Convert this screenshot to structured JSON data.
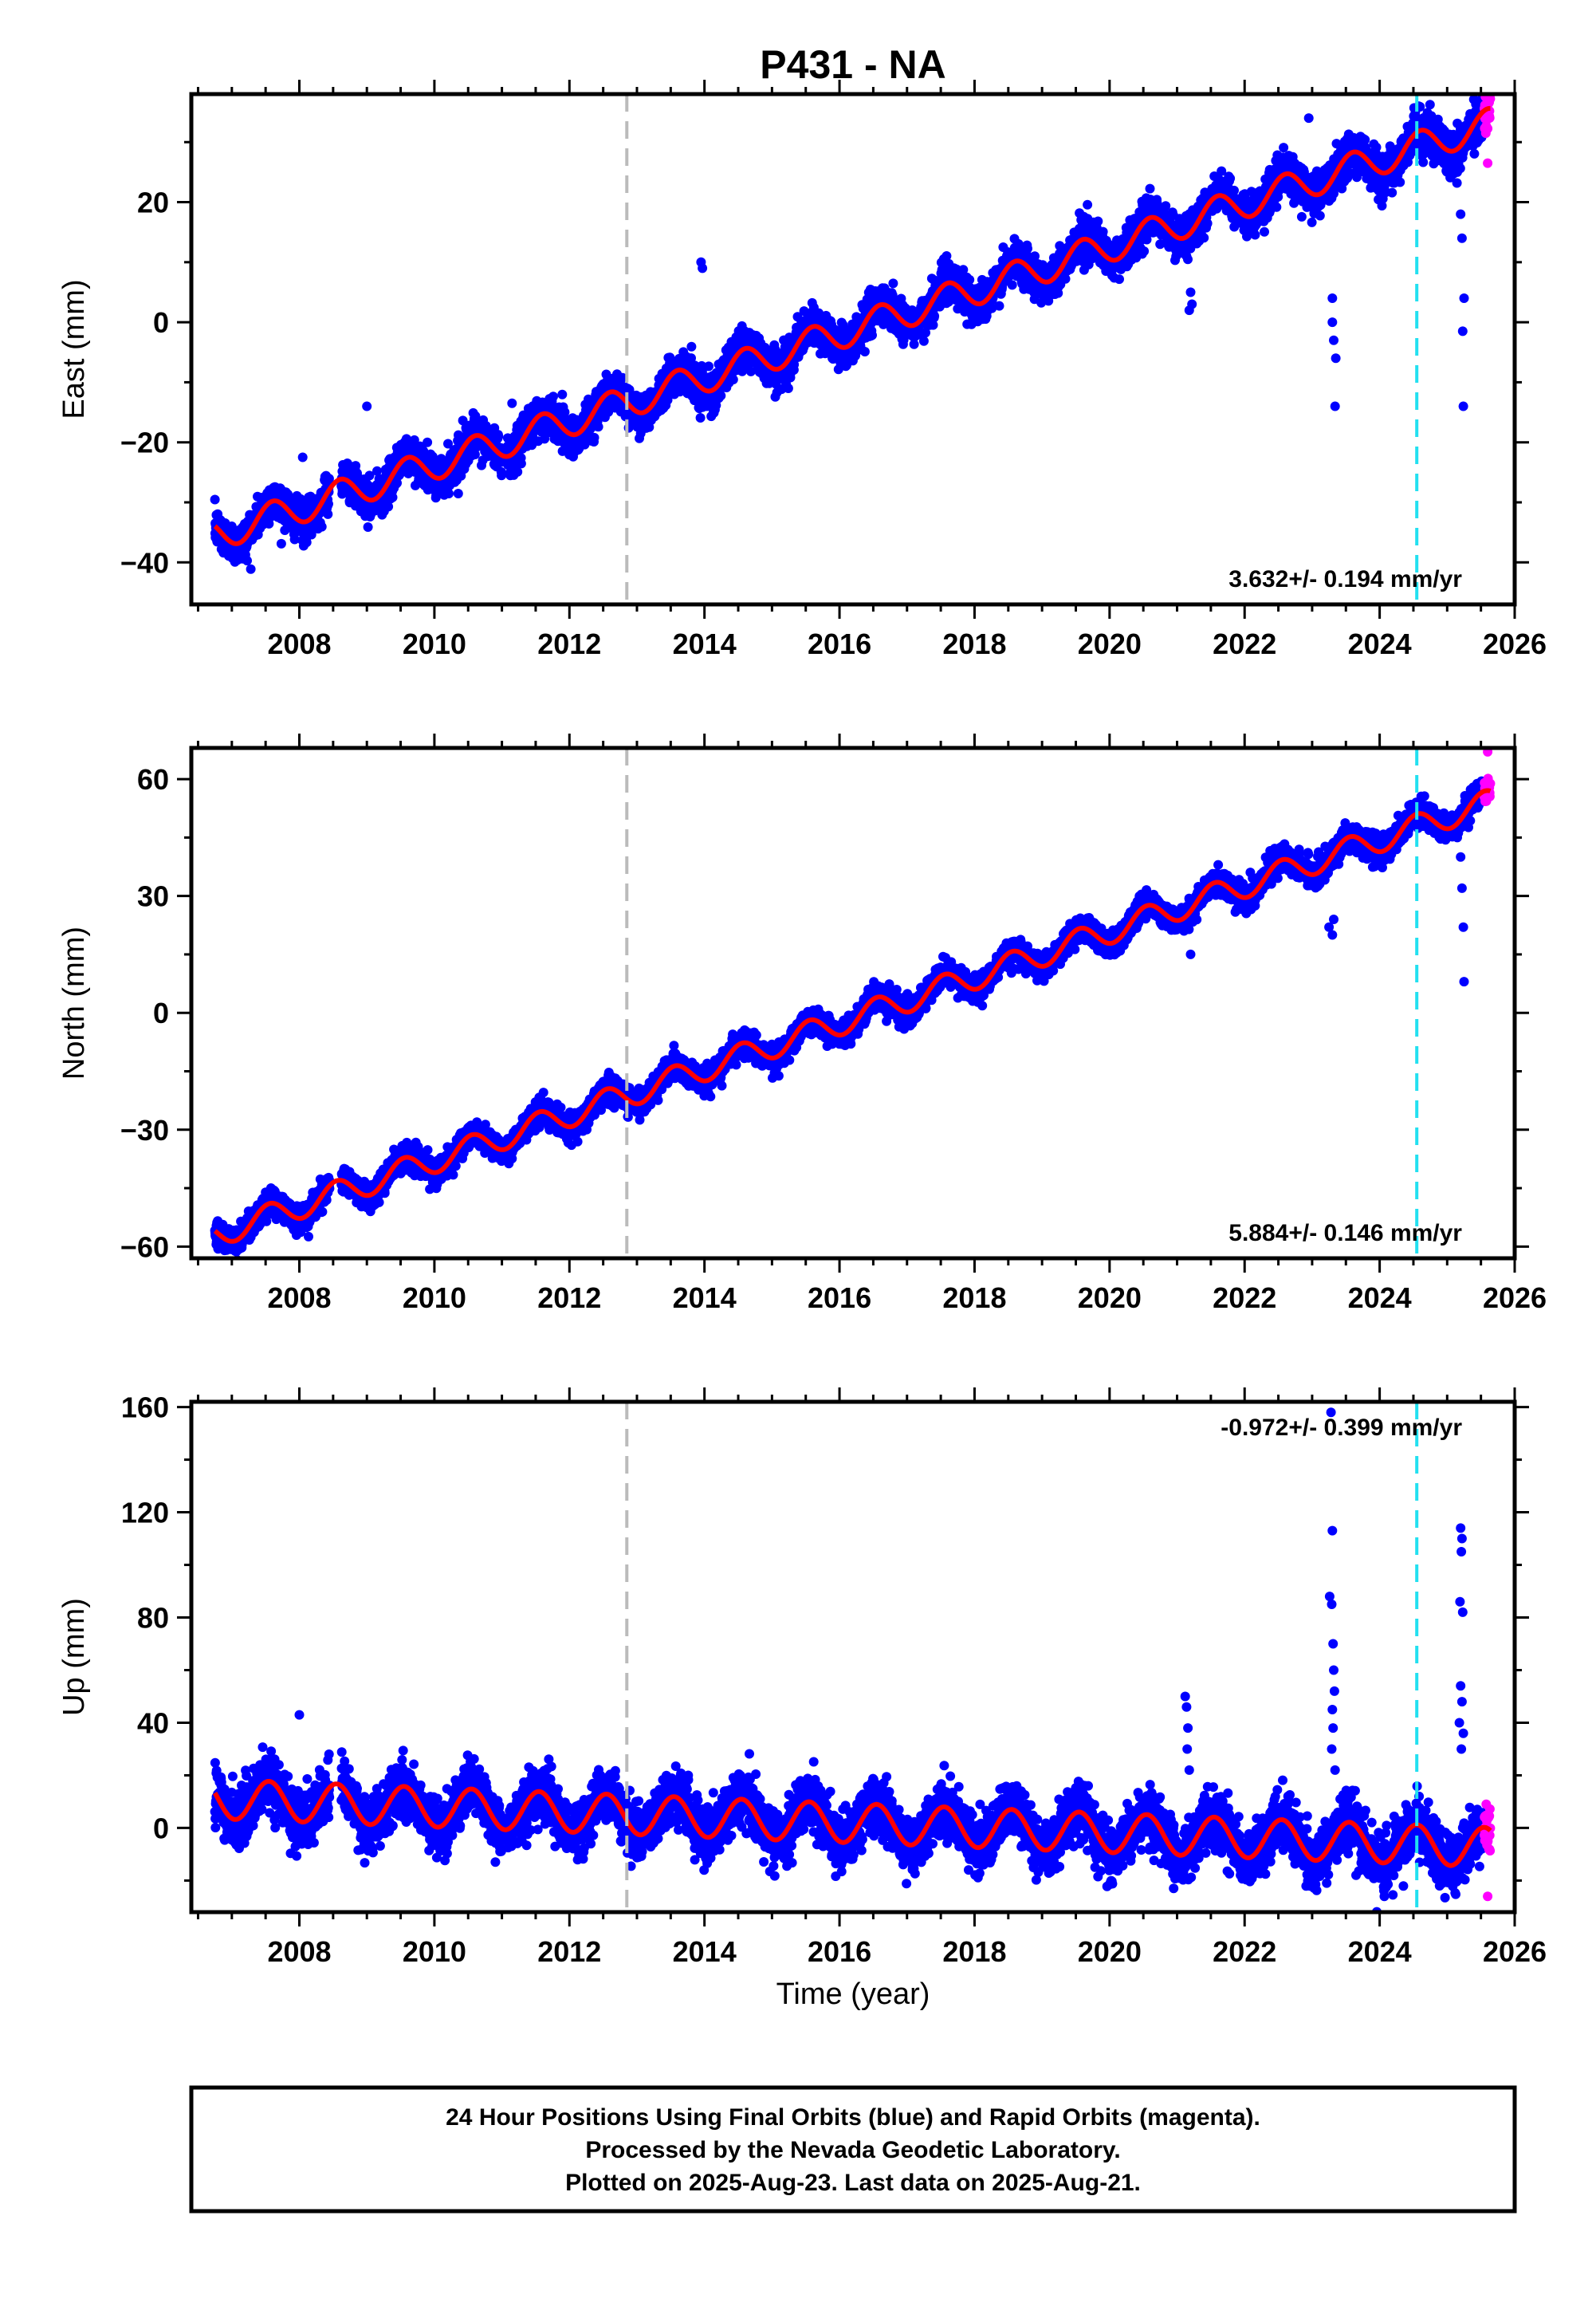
{
  "title": "P431 - NA",
  "xlabel": "Time (year)",
  "footer": {
    "line1": "24 Hour Positions Using Final Orbits (blue) and Rapid Orbits (magenta).",
    "line2": "Processed by the Nevada Geodetic Laboratory.",
    "line3": "Plotted on 2025-Aug-23. Last data on 2025-Aug-21."
  },
  "colors": {
    "final_orbits": "#0000ff",
    "rapid_orbits": "#ff00ff",
    "model_fit": "#ff0000",
    "equipment_change": "#bbbbbb",
    "event": "#22e0f0"
  },
  "chart_data": [
    {
      "type": "scatter",
      "component": "east",
      "ylabel": "East (mm)",
      "xlim": [
        2006.4,
        2026.0
      ],
      "ylim": [
        -47,
        38
      ],
      "xticks": [
        2008,
        2010,
        2012,
        2014,
        2016,
        2018,
        2020,
        2022,
        2024,
        2026
      ],
      "yticks": [
        -40,
        -20,
        0,
        20
      ],
      "rate_label": "3.632+/- 0.194 mm/yr",
      "rate_label_position": "bottom-right",
      "vertical_lines": [
        {
          "x": 2012.85,
          "kind": "equipment_change"
        },
        {
          "x": 2024.55,
          "kind": "event"
        }
      ],
      "model": {
        "intercept": -35.5,
        "slope": 3.632,
        "x0": 2006.75,
        "annual_amplitude": 2.6,
        "annual_phase": 0.35
      },
      "data_range": [
        2006.75,
        2025.64
      ],
      "rapid_range": [
        2025.55,
        2025.64
      ],
      "scatter_sd": 1.6,
      "outliers": [
        {
          "x": 2009.0,
          "y": -14
        },
        {
          "x": 2011.15,
          "y": -13.5
        },
        {
          "x": 2013.95,
          "y": 10
        },
        {
          "x": 2013.97,
          "y": 9
        },
        {
          "x": 2008.05,
          "y": -22.5
        },
        {
          "x": 2021.2,
          "y": 5
        },
        {
          "x": 2021.22,
          "y": 3
        },
        {
          "x": 2021.18,
          "y": 2
        },
        {
          "x": 2023.3,
          "y": 4
        },
        {
          "x": 2023.3,
          "y": 0
        },
        {
          "x": 2023.32,
          "y": -3
        },
        {
          "x": 2023.35,
          "y": -6
        },
        {
          "x": 2023.34,
          "y": -14
        },
        {
          "x": 2022.95,
          "y": 34
        },
        {
          "x": 2025.15,
          "y": 25
        },
        {
          "x": 2025.2,
          "y": 18
        },
        {
          "x": 2025.22,
          "y": 14
        },
        {
          "x": 2025.25,
          "y": 4
        },
        {
          "x": 2025.23,
          "y": -1.5
        },
        {
          "x": 2025.24,
          "y": -14
        },
        {
          "x": 2025.6,
          "y": 26.5
        }
      ]
    },
    {
      "type": "scatter",
      "component": "north",
      "ylabel": "North (mm)",
      "xlim": [
        2006.4,
        2026.0
      ],
      "ylim": [
        -63,
        68
      ],
      "xticks": [
        2008,
        2010,
        2012,
        2014,
        2016,
        2018,
        2020,
        2022,
        2024,
        2026
      ],
      "yticks": [
        -60,
        -30,
        0,
        30,
        60
      ],
      "rate_label": "5.884+/- 0.146 mm/yr",
      "rate_label_position": "bottom-right",
      "vertical_lines": [
        {
          "x": 2012.85,
          "kind": "equipment_change"
        },
        {
          "x": 2024.55,
          "kind": "event"
        }
      ],
      "model": {
        "intercept": -57.0,
        "slope": 5.884,
        "x0": 2006.75,
        "annual_amplitude": 3.3,
        "annual_phase": 0.3
      },
      "data_range": [
        2006.75,
        2025.64
      ],
      "rapid_range": [
        2025.55,
        2025.64
      ],
      "scatter_sd": 1.6,
      "outliers": [
        {
          "x": 2021.2,
          "y": 15
        },
        {
          "x": 2023.25,
          "y": 22
        },
        {
          "x": 2023.3,
          "y": 20
        },
        {
          "x": 2023.32,
          "y": 24
        },
        {
          "x": 2025.15,
          "y": 45
        },
        {
          "x": 2025.2,
          "y": 40
        },
        {
          "x": 2025.22,
          "y": 32
        },
        {
          "x": 2025.24,
          "y": 22
        },
        {
          "x": 2025.25,
          "y": 8
        },
        {
          "x": 2025.6,
          "y": 67
        }
      ]
    },
    {
      "type": "scatter",
      "component": "up",
      "ylabel": "Up (mm)",
      "xlim": [
        2006.4,
        2026.0
      ],
      "ylim": [
        -32,
        162
      ],
      "xticks": [
        2008,
        2010,
        2012,
        2014,
        2016,
        2018,
        2020,
        2022,
        2024,
        2026
      ],
      "yticks": [
        0,
        40,
        80,
        120,
        160
      ],
      "rate_label": "-0.972+/- 0.399 mm/yr",
      "rate_label_position": "top-right",
      "vertical_lines": [
        {
          "x": 2012.85,
          "kind": "equipment_change"
        },
        {
          "x": 2024.55,
          "kind": "event"
        }
      ],
      "model": {
        "intercept": 11.0,
        "slope": -0.972,
        "x0": 2006.75,
        "annual_amplitude": 7.5,
        "annual_phase": 0.3
      },
      "data_range": [
        2006.75,
        2025.64
      ],
      "rapid_range": [
        2025.55,
        2025.64
      ],
      "scatter_sd": 5.0,
      "outliers": [
        {
          "x": 2008.0,
          "y": 43
        },
        {
          "x": 2021.12,
          "y": 50
        },
        {
          "x": 2021.14,
          "y": 46
        },
        {
          "x": 2021.16,
          "y": 38
        },
        {
          "x": 2021.15,
          "y": 30
        },
        {
          "x": 2021.18,
          "y": 22
        },
        {
          "x": 2023.28,
          "y": 158
        },
        {
          "x": 2023.3,
          "y": 113
        },
        {
          "x": 2023.26,
          "y": 88
        },
        {
          "x": 2023.29,
          "y": 85
        },
        {
          "x": 2023.31,
          "y": 70
        },
        {
          "x": 2023.32,
          "y": 60
        },
        {
          "x": 2023.33,
          "y": 52
        },
        {
          "x": 2023.3,
          "y": 45
        },
        {
          "x": 2023.31,
          "y": 38
        },
        {
          "x": 2023.29,
          "y": 30
        },
        {
          "x": 2023.34,
          "y": 22
        },
        {
          "x": 2025.2,
          "y": 114
        },
        {
          "x": 2025.22,
          "y": 110
        },
        {
          "x": 2025.21,
          "y": 105
        },
        {
          "x": 2025.19,
          "y": 86
        },
        {
          "x": 2025.23,
          "y": 82
        },
        {
          "x": 2025.2,
          "y": 54
        },
        {
          "x": 2025.22,
          "y": 48
        },
        {
          "x": 2025.18,
          "y": 40
        },
        {
          "x": 2025.24,
          "y": 36
        },
        {
          "x": 2025.21,
          "y": 30
        },
        {
          "x": 2025.6,
          "y": -26
        }
      ]
    }
  ]
}
